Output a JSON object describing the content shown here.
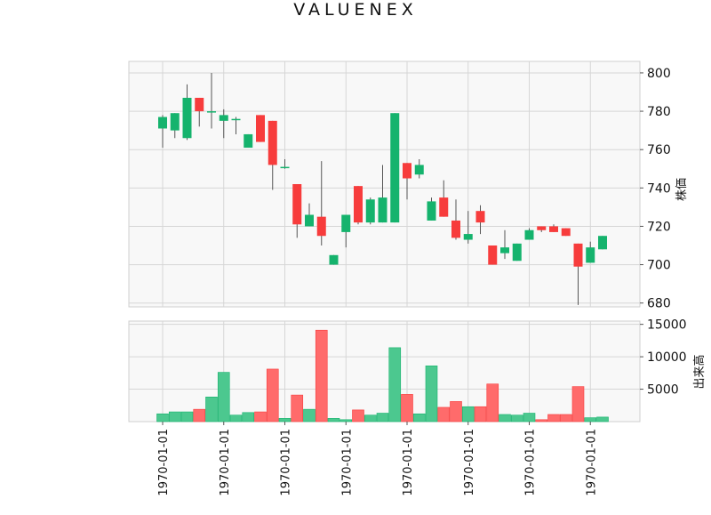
{
  "chart_data": {
    "type": "candlestick",
    "title": "VALUENEX",
    "price_axis": {
      "label": "株価",
      "ticks": [
        680,
        700,
        720,
        740,
        760,
        780,
        800
      ],
      "ylim": [
        678,
        806
      ]
    },
    "volume_axis": {
      "label": "出来高",
      "ticks": [
        5000,
        10000,
        15000
      ],
      "ylim": [
        0,
        15500
      ]
    },
    "x_tick_labels": [
      "1970-01-01",
      "1970-01-01",
      "1970-01-01",
      "1970-01-01",
      "1970-01-01",
      "1970-01-01",
      "1970-01-01",
      "1970-01-01"
    ],
    "grid": true,
    "colors": {
      "up": "#15b36d",
      "down": "#f73c3c",
      "up_volume": "#4cc88f",
      "down_volume": "#ff6b6b",
      "panel_bg": "#f8f8f8",
      "grid": "#d6d6d6"
    },
    "candles": [
      {
        "open": 771,
        "high": 778,
        "low": 761,
        "close": 777,
        "volume": 1200
      },
      {
        "open": 770,
        "high": 779,
        "low": 766,
        "close": 779,
        "volume": 1500
      },
      {
        "open": 766,
        "high": 794,
        "low": 765,
        "close": 787,
        "volume": 1500
      },
      {
        "open": 787,
        "high": 787,
        "low": 772,
        "close": 780,
        "volume": 1900
      },
      {
        "open": 780,
        "high": 800,
        "low": 771,
        "close": 780,
        "volume": 3800
      },
      {
        "open": 775,
        "high": 781,
        "low": 766,
        "close": 778,
        "volume": 7600
      },
      {
        "open": 776,
        "high": 777,
        "low": 768,
        "close": 776,
        "volume": 1000
      },
      {
        "open": 761,
        "high": 768,
        "low": 761,
        "close": 768,
        "volume": 1400
      },
      {
        "open": 778,
        "high": 778,
        "low": 764,
        "close": 764,
        "volume": 1500
      },
      {
        "open": 775,
        "high": 775,
        "low": 739,
        "close": 752,
        "volume": 8100
      },
      {
        "open": 751,
        "high": 755,
        "low": 750,
        "close": 751,
        "volume": 500
      },
      {
        "open": 742,
        "high": 742,
        "low": 714,
        "close": 721,
        "volume": 4100
      },
      {
        "open": 720,
        "high": 732,
        "low": 720,
        "close": 726,
        "volume": 1900
      },
      {
        "open": 725,
        "high": 754,
        "low": 710,
        "close": 715,
        "volume": 14100
      },
      {
        "open": 700,
        "high": 705,
        "low": 700,
        "close": 705,
        "volume": 500
      },
      {
        "open": 717,
        "high": 726,
        "low": 709,
        "close": 726,
        "volume": 300
      },
      {
        "open": 741,
        "high": 741,
        "low": 721,
        "close": 722,
        "volume": 1800
      },
      {
        "open": 722,
        "high": 735,
        "low": 721,
        "close": 734,
        "volume": 1000
      },
      {
        "open": 722,
        "high": 752,
        "low": 722,
        "close": 735,
        "volume": 1300
      },
      {
        "open": 722,
        "high": 779,
        "low": 722,
        "close": 779,
        "volume": 11400
      },
      {
        "open": 753,
        "high": 753,
        "low": 734,
        "close": 745,
        "volume": 4200
      },
      {
        "open": 747,
        "high": 755,
        "low": 745,
        "close": 752,
        "volume": 1200
      },
      {
        "open": 723,
        "high": 735,
        "low": 723,
        "close": 733,
        "volume": 8600
      },
      {
        "open": 735,
        "high": 744,
        "low": 725,
        "close": 725,
        "volume": 2200
      },
      {
        "open": 723,
        "high": 734,
        "low": 713,
        "close": 714,
        "volume": 3100
      },
      {
        "open": 713,
        "high": 728,
        "low": 711,
        "close": 716,
        "volume": 2300
      },
      {
        "open": 728,
        "high": 731,
        "low": 716,
        "close": 722,
        "volume": 2300
      },
      {
        "open": 710,
        "high": 710,
        "low": 700,
        "close": 700,
        "volume": 5800
      },
      {
        "open": 706,
        "high": 718,
        "low": 703,
        "close": 709,
        "volume": 1100
      },
      {
        "open": 702,
        "high": 711,
        "low": 702,
        "close": 711,
        "volume": 1000
      },
      {
        "open": 713,
        "high": 719,
        "low": 713,
        "close": 718,
        "volume": 1300
      },
      {
        "open": 720,
        "high": 720,
        "low": 717,
        "close": 718,
        "volume": 300
      },
      {
        "open": 720,
        "high": 721,
        "low": 717,
        "close": 717,
        "volume": 1100
      },
      {
        "open": 719,
        "high": 719,
        "low": 715,
        "close": 715,
        "volume": 1100
      },
      {
        "open": 711,
        "high": 711,
        "low": 679,
        "close": 699,
        "volume": 5400
      },
      {
        "open": 701,
        "high": 712,
        "low": 701,
        "close": 709,
        "volume": 600
      },
      {
        "open": 708,
        "high": 715,
        "low": 708,
        "close": 715,
        "volume": 700
      }
    ]
  }
}
